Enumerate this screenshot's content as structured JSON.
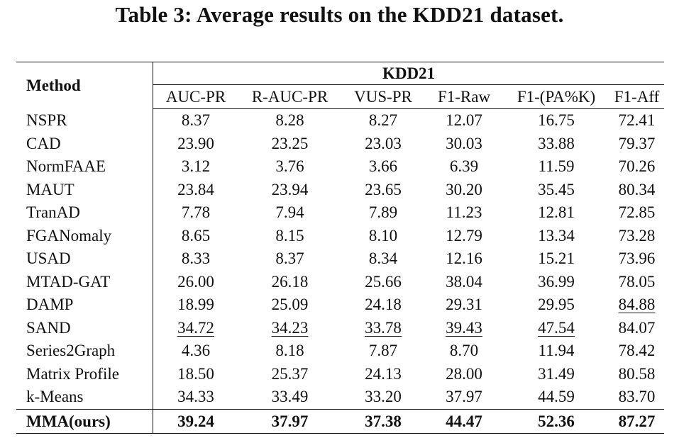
{
  "caption": "Table 3: Average results on the KDD21 dataset.",
  "table": {
    "method_header": "Method",
    "group_header": "KDD21",
    "columns": [
      "AUC-PR",
      "R-AUC-PR",
      "VUS-PR",
      "F1-Raw",
      "F1-(PA%K)",
      "F1-Aff"
    ],
    "rows": [
      {
        "method": "NSPR",
        "values": [
          "8.37",
          "8.28",
          "8.27",
          "12.07",
          "16.75",
          "72.41"
        ]
      },
      {
        "method": "CAD",
        "values": [
          "23.90",
          "23.25",
          "23.03",
          "30.03",
          "33.88",
          "79.37"
        ]
      },
      {
        "method": "NormFAAE",
        "values": [
          "3.12",
          "3.76",
          "3.66",
          "6.39",
          "11.59",
          "70.26"
        ]
      },
      {
        "method": "MAUT",
        "values": [
          "23.84",
          "23.94",
          "23.65",
          "30.20",
          "35.45",
          "80.34"
        ]
      },
      {
        "method": "TranAD",
        "values": [
          "7.78",
          "7.94",
          "7.89",
          "11.23",
          "12.81",
          "72.85"
        ]
      },
      {
        "method": "FGANomaly",
        "values": [
          "8.65",
          "8.15",
          "8.10",
          "12.79",
          "13.34",
          "73.28"
        ]
      },
      {
        "method": "USAD",
        "values": [
          "8.33",
          "8.37",
          "8.34",
          "12.16",
          "15.21",
          "73.96"
        ]
      },
      {
        "method": "MTAD-GAT",
        "values": [
          "26.00",
          "26.18",
          "25.66",
          "38.04",
          "36.99",
          "78.05"
        ]
      },
      {
        "method": "DAMP",
        "values": [
          "18.99",
          "25.09",
          "24.18",
          "29.31",
          "29.95",
          "84.88"
        ]
      },
      {
        "method": "SAND",
        "values": [
          "34.72",
          "34.23",
          "33.78",
          "39.43",
          "47.54",
          "84.07"
        ]
      },
      {
        "method": "Series2Graph",
        "values": [
          "4.36",
          "8.18",
          "7.87",
          "8.70",
          "11.94",
          "78.42"
        ]
      },
      {
        "method": "Matrix Profile",
        "values": [
          "18.50",
          "25.37",
          "24.13",
          "28.00",
          "31.49",
          "80.58"
        ]
      },
      {
        "method": "k-Means",
        "values": [
          "34.33",
          "33.49",
          "33.20",
          "37.97",
          "44.59",
          "83.70"
        ]
      }
    ],
    "ours": {
      "method": "MMA(ours)",
      "values": [
        "39.24",
        "37.97",
        "37.38",
        "44.47",
        "52.36",
        "87.27"
      ]
    },
    "underlined": {
      "DAMP": [
        5
      ],
      "SAND": [
        0,
        1,
        2,
        3,
        4
      ]
    }
  }
}
